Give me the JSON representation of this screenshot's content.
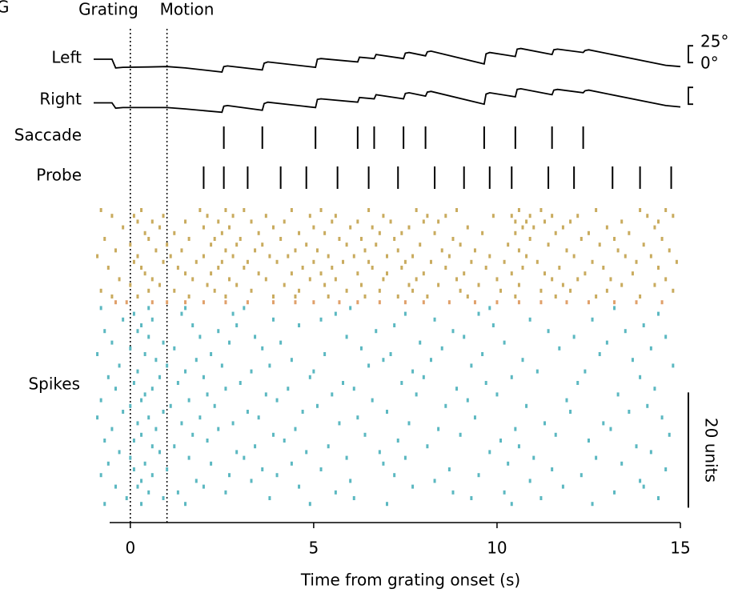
{
  "chart_data": {
    "type": "raster",
    "panel_label": "G",
    "xlabel": "Time from grating onset (s)",
    "xlim": [
      -1,
      15
    ],
    "xticks": [
      0,
      5,
      10,
      15
    ],
    "annotations": [
      {
        "text": "Grating",
        "x": 0
      },
      {
        "text": "Motion",
        "x": 1
      }
    ],
    "eye": {
      "ylim": [
        -20,
        30
      ],
      "scale_ticks": [
        {
          "value": 25,
          "label": "25°"
        },
        {
          "value": 0,
          "label": "0°"
        }
      ],
      "series": [
        {
          "name": "Left",
          "color": "#000000",
          "x": [
            -1,
            -0.5,
            -0.4,
            -0.2,
            0.5,
            1,
            1.5,
            2.5,
            2.55,
            2.65,
            3.6,
            3.65,
            3.75,
            5.05,
            5.1,
            5.2,
            6.2,
            6.25,
            6.65,
            6.7,
            7.45,
            7.5,
            7.6,
            8.05,
            8.1,
            8.2,
            9.65,
            9.7,
            9.8,
            10.5,
            10.55,
            10.65,
            11.5,
            11.55,
            11.65,
            12.35,
            12.4,
            12.5,
            14.6,
            15
          ],
          "values": [
            5,
            5,
            -8,
            -7,
            -6.5,
            -6,
            -8,
            -14,
            -6,
            -5,
            -11,
            -1,
            1,
            -7,
            5,
            6,
            1,
            8,
            6,
            12,
            6,
            14,
            15,
            10,
            16,
            17,
            -2,
            13,
            15,
            9,
            20,
            21,
            12,
            19,
            20,
            15,
            18,
            19,
            -4,
            -6
          ]
        },
        {
          "name": "Right",
          "color": "#000000",
          "x": [
            -1,
            -0.5,
            -0.4,
            -0.2,
            0.5,
            1,
            1.5,
            2.5,
            2.55,
            2.65,
            3.6,
            3.65,
            3.75,
            5.05,
            5.1,
            5.2,
            6.2,
            6.25,
            6.65,
            6.7,
            7.45,
            7.5,
            7.6,
            8.05,
            8.1,
            8.2,
            9.65,
            9.7,
            9.8,
            10.5,
            10.55,
            10.65,
            11.5,
            11.55,
            11.65,
            12.35,
            12.4,
            12.5,
            14.6,
            15
          ],
          "values": [
            2,
            2,
            -6,
            -5,
            -5,
            -5,
            -7,
            -12,
            -3,
            -2,
            -9,
            1,
            3,
            -5,
            7,
            8,
            3,
            10,
            8,
            14,
            8,
            16,
            17,
            12,
            18,
            19,
            0,
            15,
            17,
            11,
            22,
            23,
            14,
            21,
            22,
            17,
            20,
            21,
            -2,
            -4
          ]
        }
      ]
    },
    "events": [
      {
        "name": "Saccade",
        "values": [
          2.55,
          3.6,
          5.05,
          6.2,
          6.65,
          7.45,
          8.05,
          9.65,
          10.5,
          11.5,
          12.35
        ]
      },
      {
        "name": "Probe",
        "values": [
          2.0,
          2.55,
          3.2,
          4.1,
          4.8,
          5.65,
          6.5,
          7.3,
          8.3,
          9.1,
          9.8,
          10.4,
          11.4,
          12.1,
          13.15,
          13.9,
          14.75
        ]
      }
    ],
    "spikes": {
      "name": "Spikes",
      "scale": {
        "value": 20,
        "label": "20 units"
      },
      "groups": [
        {
          "color": "#c9ab5e",
          "rows": [
            [
              -0.8,
              0.3,
              1.9,
              2.6,
              3.1,
              4.4,
              5.2,
              6.5,
              7.8,
              8.9,
              10.6,
              11.2,
              12.7,
              13.9,
              14.6
            ],
            [
              -0.5,
              0.1,
              0.9,
              2.1,
              2.8,
              3.7,
              4.9,
              5.6,
              6.9,
              8.1,
              8.6,
              9.9,
              10.4,
              10.9,
              11.5,
              12.2,
              14.1,
              14.8
            ],
            [
              0.2,
              0.6,
              1.5,
              2.4,
              3.3,
              4.2,
              5.5,
              6.2,
              7.1,
              8.0,
              8.4,
              10.5,
              10.8,
              11.3,
              12.0,
              13.4,
              14.4
            ],
            [
              -0.2,
              0.8,
              2.0,
              2.7,
              3.9,
              5.0,
              6.0,
              6.6,
              7.6,
              9.2,
              10.7,
              11.0,
              11.8,
              13.0,
              14.3
            ],
            [
              0.4,
              1.2,
              2.5,
              3.5,
              4.6,
              5.3,
              6.8,
              7.4,
              8.3,
              9.6,
              10.5,
              11.6,
              12.5,
              13.6
            ],
            [
              -0.7,
              0.5,
              1.6,
              2.3,
              3.0,
              4.1,
              5.7,
              6.3,
              7.2,
              8.8,
              10.9,
              12.3,
              13.2,
              14.5
            ],
            [
              0.0,
              1.0,
              2.2,
              2.9,
              3.6,
              4.8,
              5.9,
              6.7,
              7.9,
              9.0,
              10.3,
              11.4,
              12.8,
              14.0
            ],
            [
              -0.4,
              0.7,
              1.4,
              2.6,
              3.4,
              4.5,
              5.1,
              6.4,
              7.3,
              8.5,
              9.4,
              10.6,
              11.9,
              13.3,
              14.7
            ],
            [
              -0.9,
              0.2,
              1.1,
              2.0,
              2.8,
              3.8,
              4.3,
              5.4,
              6.1,
              7.0,
              7.7,
              8.7,
              9.8,
              10.8,
              12.1,
              13.5,
              14.2
            ],
            [
              0.1,
              0.9,
              1.8,
              2.5,
              3.2,
              4.0,
              5.0,
              5.8,
              6.5,
              7.5,
              8.2,
              9.3,
              10.2,
              11.1,
              12.6,
              13.8,
              14.9
            ],
            [
              -0.6,
              0.3,
              1.3,
              2.4,
              3.1,
              4.7,
              5.5,
              6.6,
              7.4,
              8.6,
              9.7,
              10.7,
              11.7,
              12.9,
              14.4
            ],
            [
              0.4,
              1.5,
              2.2,
              3.5,
              4.4,
              5.2,
              6.2,
              7.0,
              8.0,
              9.1,
              10.4,
              11.3,
              12.4,
              13.7
            ],
            [
              -0.3,
              0.6,
              1.7,
              2.7,
              3.7,
              4.9,
              5.6,
              6.9,
              7.8,
              8.9,
              10.0,
              11.5,
              12.2,
              13.1,
              14.6
            ],
            [
              0.0,
              0.8,
              2.1,
              2.9,
              4.2,
              5.3,
              6.3,
              7.6,
              8.4,
              9.5,
              10.6,
              11.8,
              13.4,
              14.3
            ],
            [
              -0.8,
              0.5,
              1.2,
              2.3,
              3.3,
              4.6,
              5.9,
              6.8,
              7.7,
              9.0,
              10.1,
              11.2,
              12.0,
              13.0,
              14.8
            ],
            [
              -0.5,
              0.2,
              1.6,
              2.6,
              3.9,
              4.5,
              5.4,
              6.4,
              7.3,
              8.1,
              9.2,
              10.5,
              11.6,
              12.7,
              13.9
            ]
          ]
        },
        {
          "color": "#e0a06a",
          "rows": [
            [
              -0.4,
              -0.1,
              0.6,
              1.0,
              1.5,
              2.0,
              2.6,
              3.2,
              3.9,
              4.5,
              5.0,
              5.7,
              6.2,
              6.8,
              7.5,
              8.0,
              8.7,
              9.4,
              10.0,
              10.6,
              11.2,
              11.9,
              12.5,
              13.2,
              13.8,
              14.5
            ]
          ]
        },
        {
          "color": "#5bb8c1",
          "rows": [
            [
              -0.8,
              0.5,
              1.5,
              3.1,
              6.0,
              9.8,
              13.2
            ],
            [
              0.1,
              1.4,
              2.8,
              5.6,
              7.5,
              9.5,
              14.4
            ],
            [
              -0.2,
              0.6,
              3.9,
              5.2,
              8.3,
              10.9,
              12.6
            ],
            [
              0.3,
              1.7,
              2.9,
              4.6,
              7.2,
              9.9,
              14.0
            ],
            [
              -0.7,
              0.2,
              2.4,
              6.7,
              8.8,
              11.4,
              13.5
            ],
            [
              0.5,
              1.9,
              3.4,
              5.9,
              9.1,
              12.1,
              14.6
            ],
            [
              -0.5,
              0.9,
              2.7,
              4.1,
              7.9,
              10.2,
              13.0
            ],
            [
              0.0,
              1.2,
              3.6,
              6.3,
              8.5,
              11.7,
              14.2
            ],
            [
              -0.9,
              0.4,
              2.2,
              5.3,
              7.1,
              9.6,
              12.8
            ],
            [
              0.7,
              1.8,
              4.4,
              6.9,
              8.2,
              10.7,
              13.7
            ],
            [
              -0.3,
              1.0,
              2.5,
              3.8,
              6.5,
              9.3,
              14.8
            ],
            [
              0.2,
              1.5,
              3.3,
              5.0,
              7.7,
              11.1,
              12.4
            ],
            [
              -0.6,
              0.8,
              2.0,
              4.9,
              8.0,
              10.4,
              13.9
            ],
            [
              0.1,
              1.3,
              3.0,
              5.8,
              7.4,
              9.7,
              12.2
            ],
            [
              -0.4,
              0.6,
              2.6,
              4.3,
              6.1,
              8.9,
              14.3
            ],
            [
              0.4,
              2.1,
              3.7,
              5.5,
              7.8,
              10.0,
              13.3
            ],
            [
              -0.8,
              0.3,
              1.6,
              4.0,
              6.6,
              9.2,
              11.9
            ],
            [
              0.0,
              1.1,
              2.3,
              5.1,
              8.6,
              10.8,
              14.1
            ],
            [
              -0.2,
              0.9,
              3.2,
              4.7,
              7.0,
              12.0,
              13.6
            ],
            [
              -0.9,
              0.5,
              1.9,
              3.5,
              6.2,
              9.4,
              14.5
            ],
            [
              0.2,
              1.4,
              2.8,
              5.7,
              7.6,
              11.3,
              12.9
            ],
            [
              -0.5,
              0.7,
              2.4,
              4.5,
              8.4,
              10.5,
              13.1
            ],
            [
              0.3,
              1.7,
              3.9,
              6.4,
              9.0,
              11.6,
              14.7
            ],
            [
              -0.7,
              0.1,
              2.1,
              4.2,
              7.3,
              10.1,
              12.5
            ],
            [
              0.6,
              1.2,
              3.4,
              5.4,
              8.1,
              10.6,
              13.8
            ],
            [
              -0.3,
              0.8,
              2.9,
              4.8,
              6.8,
              9.8,
              14.2
            ],
            [
              0.0,
              1.6,
              3.1,
              5.9,
              7.5,
              11.0,
              12.7
            ],
            [
              -0.6,
              0.4,
              2.2,
              4.4,
              6.9,
              10.3,
              13.4
            ],
            [
              0.1,
              1.0,
              3.6,
              5.2,
              8.7,
              11.5,
              14.6
            ],
            [
              -0.8,
              0.6,
              2.7,
              4.0,
              7.2,
              9.5,
              12.3
            ],
            [
              0.3,
              1.8,
              3.3,
              6.0,
              8.3,
              10.9,
              13.9
            ],
            [
              -0.4,
              0.2,
              2.0,
              4.6,
              7.7,
              11.8,
              14.0
            ],
            [
              0.5,
              1.3,
              2.6,
              5.6,
              8.8,
              10.2,
              13.2
            ],
            [
              -0.1,
              0.9,
              3.8,
              6.1,
              9.3,
              11.2,
              14.4
            ],
            [
              -0.7,
              0.3,
              1.5,
              4.9,
              7.0,
              10.4,
              12.6
            ]
          ]
        }
      ]
    }
  }
}
